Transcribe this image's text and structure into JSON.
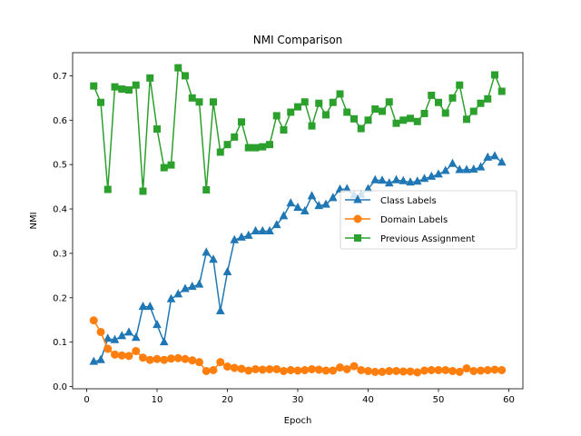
{
  "chart_data": {
    "type": "line",
    "title": "NMI Comparison",
    "xlabel": "Epoch",
    "ylabel": "NMI",
    "xlim": [
      -2,
      62
    ],
    "ylim": [
      -0.005,
      0.752
    ],
    "xticks": [
      0,
      10,
      20,
      30,
      40,
      50,
      60
    ],
    "yticks": [
      0.0,
      0.1,
      0.2,
      0.3,
      0.4,
      0.5,
      0.6,
      0.7
    ],
    "xtick_labels": [
      "0",
      "10",
      "20",
      "30",
      "40",
      "50",
      "60"
    ],
    "ytick_labels": [
      "0.0",
      "0.1",
      "0.2",
      "0.3",
      "0.4",
      "0.5",
      "0.6",
      "0.7"
    ],
    "legend_position": "center-right",
    "grid": false,
    "x": [
      1,
      2,
      3,
      4,
      5,
      6,
      7,
      8,
      9,
      10,
      11,
      12,
      13,
      14,
      15,
      16,
      17,
      18,
      19,
      20,
      21,
      22,
      23,
      24,
      25,
      26,
      27,
      28,
      29,
      30,
      31,
      32,
      33,
      34,
      35,
      36,
      37,
      38,
      39,
      40,
      41,
      42,
      43,
      44,
      45,
      46,
      47,
      48,
      49,
      50,
      51,
      52,
      53,
      54,
      55,
      56,
      57,
      58,
      59
    ],
    "series": [
      {
        "name": "Class Labels",
        "color": "#1f77b4",
        "marker": "triangle",
        "values": [
          0.056,
          0.06,
          0.108,
          0.105,
          0.114,
          0.122,
          0.11,
          0.18,
          0.18,
          0.139,
          0.1,
          0.197,
          0.208,
          0.22,
          0.225,
          0.23,
          0.302,
          0.286,
          0.17,
          0.258,
          0.33,
          0.336,
          0.34,
          0.35,
          0.35,
          0.35,
          0.364,
          0.384,
          0.413,
          0.403,
          0.395,
          0.429,
          0.407,
          0.41,
          0.425,
          0.444,
          0.445,
          0.431,
          0.432,
          0.445,
          0.465,
          0.464,
          0.458,
          0.465,
          0.463,
          0.46,
          0.462,
          0.468,
          0.473,
          0.478,
          0.486,
          0.502,
          0.488,
          0.488,
          0.489,
          0.494,
          0.516,
          0.519,
          0.505
        ]
      },
      {
        "name": "Domain Labels",
        "color": "#ff7f0e",
        "marker": "circle",
        "values": [
          0.149,
          0.123,
          0.085,
          0.072,
          0.07,
          0.069,
          0.08,
          0.065,
          0.06,
          0.062,
          0.06,
          0.063,
          0.064,
          0.062,
          0.059,
          0.055,
          0.035,
          0.037,
          0.055,
          0.045,
          0.042,
          0.04,
          0.036,
          0.039,
          0.038,
          0.039,
          0.039,
          0.035,
          0.037,
          0.036,
          0.037,
          0.039,
          0.038,
          0.036,
          0.036,
          0.043,
          0.039,
          0.046,
          0.037,
          0.035,
          0.033,
          0.033,
          0.035,
          0.035,
          0.034,
          0.034,
          0.032,
          0.036,
          0.037,
          0.037,
          0.037,
          0.035,
          0.033,
          0.041,
          0.035,
          0.036,
          0.037,
          0.038,
          0.037
        ]
      },
      {
        "name": "Previous Assignment",
        "color": "#2ca02c",
        "marker": "square",
        "values": [
          0.677,
          0.64,
          0.444,
          0.675,
          0.67,
          0.668,
          0.679,
          0.44,
          0.695,
          0.58,
          0.493,
          0.499,
          0.718,
          0.7,
          0.65,
          0.641,
          0.443,
          0.641,
          0.528,
          0.545,
          0.562,
          0.596,
          0.538,
          0.538,
          0.54,
          0.545,
          0.61,
          0.578,
          0.618,
          0.63,
          0.641,
          0.587,
          0.638,
          0.612,
          0.64,
          0.659,
          0.618,
          0.603,
          0.581,
          0.6,
          0.625,
          0.62,
          0.641,
          0.593,
          0.6,
          0.604,
          0.597,
          0.615,
          0.656,
          0.64,
          0.616,
          0.65,
          0.679,
          0.602,
          0.62,
          0.638,
          0.648,
          0.702,
          0.665
        ]
      }
    ]
  }
}
